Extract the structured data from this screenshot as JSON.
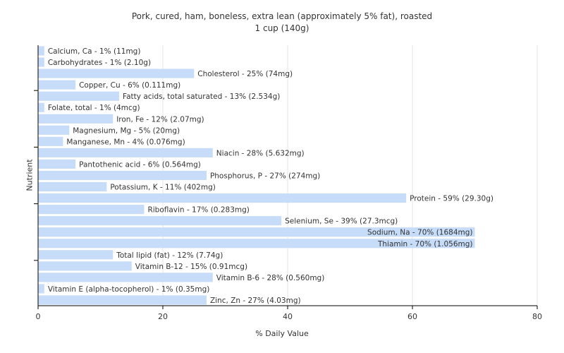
{
  "chart_data": {
    "type": "bar",
    "orientation": "horizontal",
    "title": "Pork, cured, ham, boneless, extra lean (approximately 5% fat), roasted",
    "subtitle": "1 cup (140g)",
    "xlabel": "% Daily Value",
    "ylabel": "Nutrient",
    "xlim": [
      0,
      80
    ],
    "xticks": [
      0,
      20,
      40,
      60,
      80
    ],
    "grid": "vertical",
    "bar_color": "#c6dcf8",
    "categories": [
      "Calcium, Ca",
      "Carbohydrates",
      "Cholesterol",
      "Copper, Cu",
      "Fatty acids, total saturated",
      "Folate, total",
      "Iron, Fe",
      "Magnesium, Mg",
      "Manganese, Mn",
      "Niacin",
      "Pantothenic acid",
      "Phosphorus, P",
      "Potassium, K",
      "Protein",
      "Riboflavin",
      "Selenium, Se",
      "Sodium, Na",
      "Thiamin",
      "Total lipid (fat)",
      "Vitamin B-12",
      "Vitamin B-6",
      "Vitamin E (alpha-tocopherol)",
      "Zinc, Zn"
    ],
    "values": [
      1,
      1,
      25,
      6,
      13,
      1,
      12,
      5,
      4,
      28,
      6,
      27,
      11,
      59,
      17,
      39,
      70,
      70,
      12,
      15,
      28,
      1,
      27
    ],
    "labels": [
      "Calcium, Ca - 1% (11mg)",
      "Carbohydrates - 1% (2.10g)",
      "Cholesterol - 25% (74mg)",
      "Copper, Cu - 6% (0.111mg)",
      "Fatty acids, total saturated - 13% (2.534g)",
      "Folate, total - 1% (4mcg)",
      "Iron, Fe - 12% (2.07mg)",
      "Magnesium, Mg - 5% (20mg)",
      "Manganese, Mn - 4% (0.076mg)",
      "Niacin - 28% (5.632mg)",
      "Pantothenic acid - 6% (0.564mg)",
      "Phosphorus, P - 27% (274mg)",
      "Potassium, K - 11% (402mg)",
      "Protein - 59% (29.30g)",
      "Riboflavin - 17% (0.283mg)",
      "Selenium, Se - 39% (27.3mcg)",
      "Sodium, Na - 70% (1684mg)",
      "Thiamin - 70% (1.056mg)",
      "Total lipid (fat) - 12% (7.74g)",
      "Vitamin B-12 - 15% (0.91mcg)",
      "Vitamin B-6 - 28% (0.560mg)",
      "Vitamin E (alpha-tocopherol) - 1% (0.35mg)",
      "Zinc, Zn - 27% (4.03mg)"
    ]
  }
}
